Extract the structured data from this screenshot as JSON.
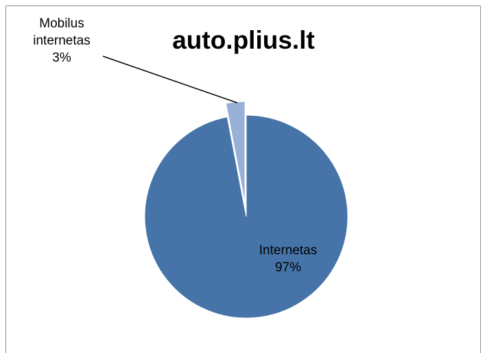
{
  "chart_data": {
    "type": "pie",
    "title": "auto.plius.lt",
    "categories": [
      "Internetas",
      "Mobilus internetas"
    ],
    "values": [
      97,
      3
    ],
    "value_labels": [
      "97%",
      "3%"
    ],
    "colors": [
      "#4674a8",
      "#98b0d8"
    ]
  }
}
